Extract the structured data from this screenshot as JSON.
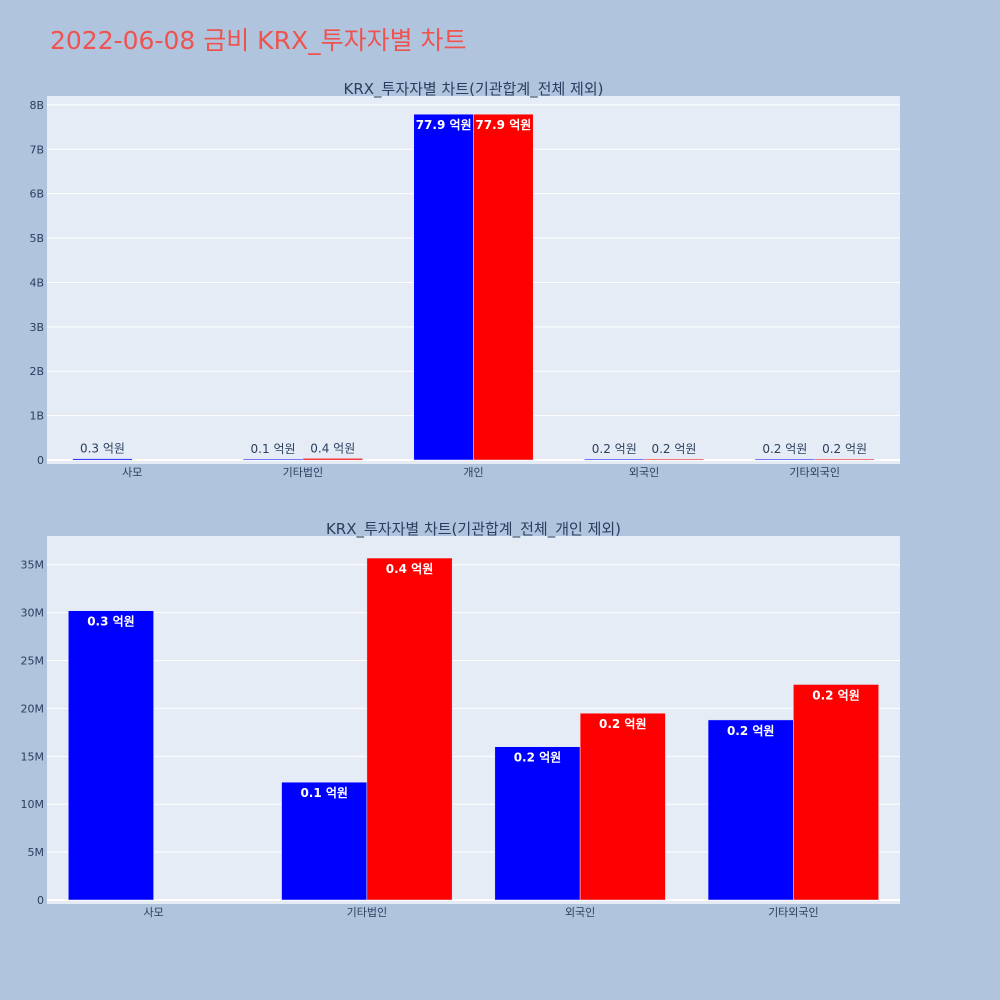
{
  "page_title": "2022-06-08 금비 KRX_투자자별 차트",
  "colors": {
    "page_bg": "#b0c4de",
    "plot_bg": "#e5ecf6",
    "title": "#ef5350",
    "sell": "#0000ff",
    "buy": "#ff0000",
    "axis_text": "#2a3f5f",
    "grid": "#ffffff"
  },
  "chart_data": [
    {
      "type": "bar",
      "title": "KRX_투자자별 차트(기관합계_전체 제외)",
      "categories": [
        "사모",
        "기타법인",
        "개인",
        "외국인",
        "기타외국인"
      ],
      "ylim": [
        0,
        8200000000
      ],
      "yticks": [
        0,
        1000000000,
        2000000000,
        3000000000,
        4000000000,
        5000000000,
        6000000000,
        7000000000,
        8000000000
      ],
      "ytick_labels": [
        "0",
        "1B",
        "2B",
        "3B",
        "4B",
        "5B",
        "6B",
        "7B",
        "8B"
      ],
      "grid": true,
      "series": [
        {
          "color": "#0000ff",
          "values": [
            30200000,
            12300000,
            7790000000,
            16000000,
            18800000
          ],
          "labels": [
            "0.3 억원",
            "0.1 억원",
            "77.9 억원",
            "0.2 억원",
            "0.2 억원"
          ]
        },
        {
          "color": "#ff0000",
          "values": [
            0,
            35700000,
            7790000000,
            19500000,
            22500000
          ],
          "labels": [
            "",
            "0.4 억원",
            "77.9 억원",
            "0.2 억원",
            "0.2 억원"
          ]
        }
      ]
    },
    {
      "type": "bar",
      "title": "KRX_투자자별 차트(기관합계_전체_개인 제외)",
      "categories": [
        "사모",
        "기타법인",
        "외국인",
        "기타외국인"
      ],
      "ylim": [
        0,
        38000000
      ],
      "yticks": [
        0,
        5000000,
        10000000,
        15000000,
        20000000,
        25000000,
        30000000,
        35000000
      ],
      "ytick_labels": [
        "0",
        "5M",
        "10M",
        "15M",
        "20M",
        "25M",
        "30M",
        "35M"
      ],
      "grid": true,
      "series": [
        {
          "color": "#0000ff",
          "values": [
            30200000,
            12300000,
            16000000,
            18800000
          ],
          "labels": [
            "0.3 억원",
            "0.1 억원",
            "0.2 억원",
            "0.2 억원"
          ]
        },
        {
          "color": "#ff0000",
          "values": [
            0,
            35700000,
            19500000,
            22500000
          ],
          "labels": [
            "",
            "0.4 억원",
            "0.2 억원",
            "0.2 억원"
          ]
        }
      ]
    }
  ]
}
